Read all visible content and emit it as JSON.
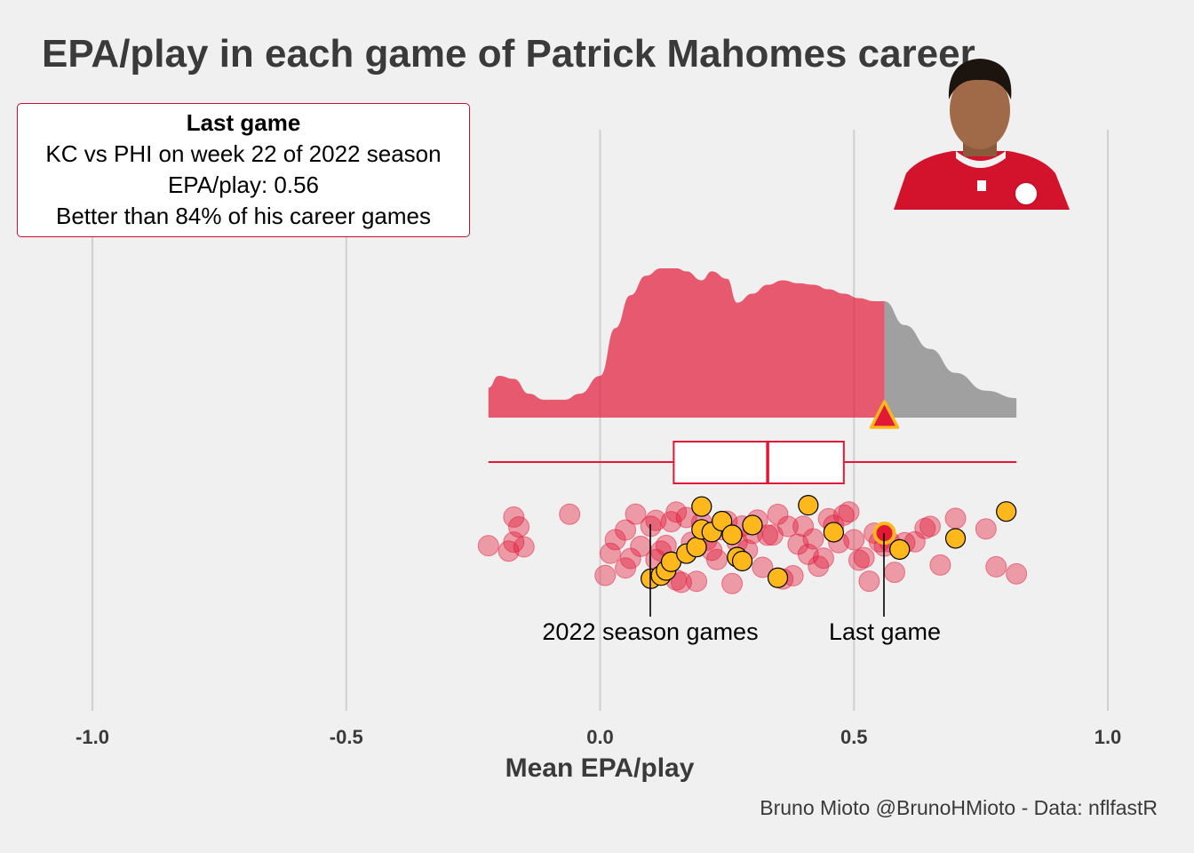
{
  "title": "EPA/play in each game of Patrick Mahomes career",
  "infobox": {
    "heading": "Last game",
    "line1": "KC vs PHI on week 22 of 2022 season",
    "line2": "EPA/play: 0.56",
    "line3": "Better than 84% of his career games"
  },
  "caption": "Bruno Mioto @BrunoHMioto - Data: nflfastR",
  "annotations": {
    "season": "2022 season games",
    "last": "Last game"
  },
  "colors": {
    "kc_red": "#e31837",
    "density_grey": "#a0a0a0",
    "season_gold": "#ffb81c",
    "background": "#f0f0f0",
    "grid": "#d0d0d0"
  },
  "photo": {
    "subject": "Patrick Mahomes headshot"
  },
  "chart_data": {
    "type": "raincloud",
    "title": "EPA/play in each game of Patrick Mahomes career",
    "xlabel": "Mean EPA/play",
    "ylabel": "",
    "xlim": [
      -1.0,
      1.0
    ],
    "xticks": [
      -1.0,
      -0.5,
      0.0,
      0.5,
      1.0
    ],
    "tick_labels": [
      "-1.0",
      "-0.5",
      "0.0",
      "0.5",
      "1.0"
    ],
    "grid": true,
    "last_game_value": 0.56,
    "last_game_percentile": 84,
    "density": {
      "x": [
        -0.22,
        -0.2,
        -0.17,
        -0.14,
        -0.11,
        -0.07,
        -0.04,
        0.0,
        0.03,
        0.06,
        0.09,
        0.12,
        0.15,
        0.17,
        0.2,
        0.22,
        0.25,
        0.27,
        0.3,
        0.33,
        0.36,
        0.39,
        0.42,
        0.45,
        0.48,
        0.51,
        0.54,
        0.56,
        0.6,
        0.65,
        0.7,
        0.76,
        0.82
      ],
      "y": [
        0.2,
        0.28,
        0.26,
        0.16,
        0.12,
        0.12,
        0.16,
        0.28,
        0.6,
        0.82,
        0.95,
        1.0,
        1.0,
        0.98,
        0.92,
        0.98,
        0.93,
        0.77,
        0.83,
        0.89,
        0.92,
        0.9,
        0.89,
        0.86,
        0.83,
        0.8,
        0.78,
        0.78,
        0.62,
        0.46,
        0.3,
        0.18,
        0.13
      ],
      "highlight_below": 0.56
    },
    "boxplot": {
      "min": -0.22,
      "q1": 0.145,
      "median": 0.33,
      "q3": 0.48,
      "max": 0.82
    },
    "career_games": [
      -0.22,
      -0.18,
      -0.17,
      -0.16,
      -0.17,
      -0.15,
      -0.06,
      0.01,
      0.02,
      0.03,
      0.05,
      0.05,
      0.06,
      0.07,
      0.08,
      0.1,
      0.11,
      0.11,
      0.12,
      0.13,
      0.14,
      0.15,
      0.15,
      0.16,
      0.17,
      0.18,
      0.19,
      0.2,
      0.21,
      0.22,
      0.23,
      0.24,
      0.25,
      0.26,
      0.27,
      0.28,
      0.29,
      0.3,
      0.31,
      0.32,
      0.33,
      0.34,
      0.35,
      0.36,
      0.37,
      0.38,
      0.39,
      0.4,
      0.41,
      0.42,
      0.43,
      0.44,
      0.45,
      0.46,
      0.47,
      0.48,
      0.49,
      0.5,
      0.51,
      0.52,
      0.53,
      0.54,
      0.55,
      0.56,
      0.57,
      0.58,
      0.6,
      0.62,
      0.64,
      0.65,
      0.67,
      0.7,
      0.76,
      0.78,
      0.82
    ],
    "season_2022_games": [
      0.1,
      0.12,
      0.13,
      0.14,
      0.17,
      0.19,
      0.2,
      0.2,
      0.22,
      0.24,
      0.26,
      0.27,
      0.28,
      0.3,
      0.35,
      0.41,
      0.46,
      0.59,
      0.7,
      0.8
    ]
  }
}
